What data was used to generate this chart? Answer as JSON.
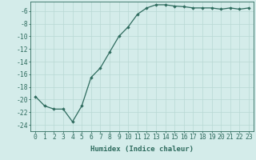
{
  "x": [
    0,
    1,
    2,
    3,
    4,
    5,
    6,
    7,
    8,
    9,
    10,
    11,
    12,
    13,
    14,
    15,
    16,
    17,
    18,
    19,
    20,
    21,
    22,
    23
  ],
  "y": [
    -19.5,
    -21.0,
    -21.5,
    -21.5,
    -23.5,
    -21.0,
    -16.5,
    -15.0,
    -12.5,
    -10.0,
    -8.5,
    -6.5,
    -5.5,
    -5.0,
    -5.0,
    -5.2,
    -5.3,
    -5.5,
    -5.5,
    -5.5,
    -5.7,
    -5.5,
    -5.7,
    -5.5
  ],
  "line_color": "#2e6b5e",
  "marker": "D",
  "marker_size": 1.8,
  "bg_color": "#d4ecea",
  "grid_color": "#b8d8d4",
  "xlabel": "Humidex (Indice chaleur)",
  "ylabel": "",
  "xlim": [
    -0.5,
    23.5
  ],
  "ylim": [
    -25,
    -4.5
  ],
  "yticks": [
    -6,
    -8,
    -10,
    -12,
    -14,
    -16,
    -18,
    -20,
    -22,
    -24
  ],
  "xticks": [
    0,
    1,
    2,
    3,
    4,
    5,
    6,
    7,
    8,
    9,
    10,
    11,
    12,
    13,
    14,
    15,
    16,
    17,
    18,
    19,
    20,
    21,
    22,
    23
  ],
  "xlabel_fontsize": 6.5,
  "tick_fontsize": 5.8,
  "tick_color": "#2e6b5e",
  "axis_color": "#2e6b5e",
  "linewidth": 0.9
}
